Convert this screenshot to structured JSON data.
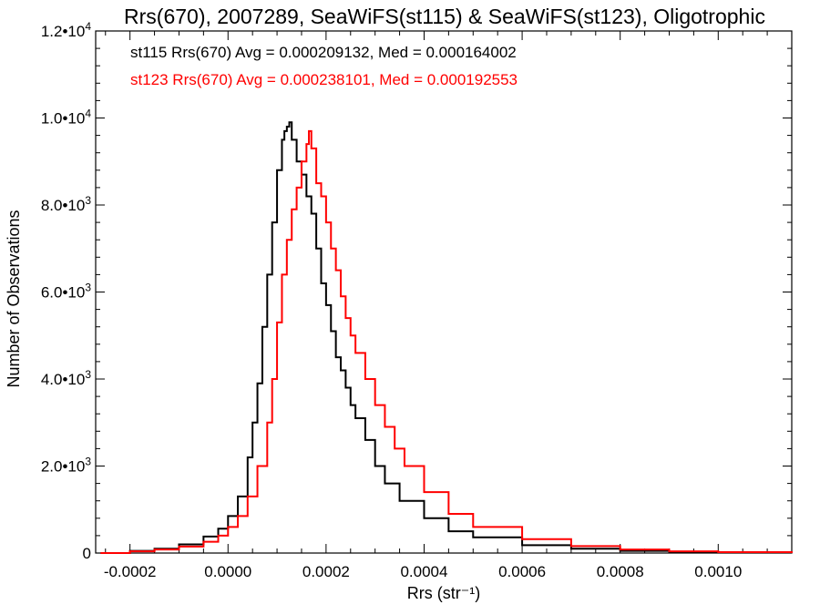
{
  "chart_data": {
    "type": "histogram",
    "title": "Rrs(670), 2007289, SeaWiFS(st115) & SeaWiFS(st123), Oligotrophic",
    "xlabel": "Rrs (str⁻¹)",
    "ylabel": "Number of Observations",
    "xlim": [
      -0.00027,
      0.00115
    ],
    "ylim": [
      0,
      12000
    ],
    "x_ticks": [
      {
        "value": -0.0002,
        "label": "-0.0002"
      },
      {
        "value": 0.0,
        "label": "0.0000"
      },
      {
        "value": 0.0002,
        "label": "0.0002"
      },
      {
        "value": 0.0004,
        "label": "0.0004"
      },
      {
        "value": 0.0006,
        "label": "0.0006"
      },
      {
        "value": 0.0008,
        "label": "0.0008"
      },
      {
        "value": 0.001,
        "label": "0.0010"
      }
    ],
    "y_ticks": [
      {
        "value": 0,
        "mant": "0",
        "exp": ""
      },
      {
        "value": 2000,
        "mant": "2.0•10",
        "exp": "3"
      },
      {
        "value": 4000,
        "mant": "4.0•10",
        "exp": "3"
      },
      {
        "value": 6000,
        "mant": "6.0•10",
        "exp": "3"
      },
      {
        "value": 8000,
        "mant": "8.0•10",
        "exp": "3"
      },
      {
        "value": 10000,
        "mant": "1.0•10",
        "exp": "4"
      },
      {
        "value": 12000,
        "mant": "1.2•10",
        "exp": "4"
      }
    ],
    "annotations": [
      {
        "text": "st115 Rrs(670) Avg = 0.000209132, Med = 0.000164002",
        "color": "#000000"
      },
      {
        "text": "st123 Rrs(670) Avg = 0.000238101, Med = 0.000192553",
        "color": "#ff0000"
      }
    ],
    "grid": false,
    "legend": "top-left",
    "series": [
      {
        "color": "#000000",
        "x": [
          -0.00026,
          -0.0002,
          -0.00015,
          -0.0001,
          -5e-05,
          -2e-05,
          0.0,
          2e-05,
          4e-05,
          5e-05,
          6e-05,
          7e-05,
          8e-05,
          9e-05,
          0.0001,
          0.00011,
          0.000115,
          0.00012,
          0.000125,
          0.00013,
          0.00014,
          0.00015,
          0.00016,
          0.00017,
          0.00018,
          0.00019,
          0.0002,
          0.00021,
          0.00022,
          0.00023,
          0.00024,
          0.00025,
          0.00026,
          0.00028,
          0.0003,
          0.00032,
          0.00035,
          0.0004,
          0.00045,
          0.0005,
          0.0006,
          0.0007,
          0.0008,
          0.0009,
          0.001,
          0.00115
        ],
        "values": [
          0,
          50,
          100,
          200,
          380,
          560,
          850,
          1300,
          2200,
          3000,
          3900,
          5200,
          6400,
          7600,
          8800,
          9500,
          9700,
          9800,
          9900,
          9500,
          9000,
          8700,
          8200,
          7800,
          7000,
          6200,
          5700,
          5100,
          4500,
          4200,
          3800,
          3400,
          3100,
          2600,
          2000,
          1600,
          1200,
          800,
          500,
          360,
          180,
          100,
          50,
          30,
          20,
          0
        ]
      },
      {
        "color": "#ff0000",
        "x": [
          -0.00026,
          -0.0002,
          -0.00015,
          -0.0001,
          -5e-05,
          -2e-05,
          0.0,
          2e-05,
          4e-05,
          6e-05,
          8e-05,
          9e-05,
          0.0001,
          0.00011,
          0.00012,
          0.00013,
          0.00014,
          0.00015,
          0.00016,
          0.000165,
          0.00017,
          0.00018,
          0.00019,
          0.0002,
          0.00021,
          0.00022,
          0.00023,
          0.00024,
          0.00025,
          0.00026,
          0.00028,
          0.0003,
          0.00032,
          0.00034,
          0.00036,
          0.0004,
          0.00045,
          0.0005,
          0.0006,
          0.0007,
          0.0008,
          0.0009,
          0.001,
          0.00115
        ],
        "values": [
          0,
          40,
          80,
          150,
          260,
          400,
          600,
          850,
          1300,
          2000,
          3000,
          4000,
          5300,
          6400,
          7200,
          7900,
          8400,
          9000,
          9400,
          9700,
          9300,
          8500,
          8200,
          7600,
          7000,
          6500,
          5900,
          5400,
          5000,
          4600,
          4000,
          3400,
          2900,
          2400,
          2000,
          1400,
          900,
          600,
          320,
          160,
          80,
          40,
          20,
          0
        ]
      }
    ]
  }
}
